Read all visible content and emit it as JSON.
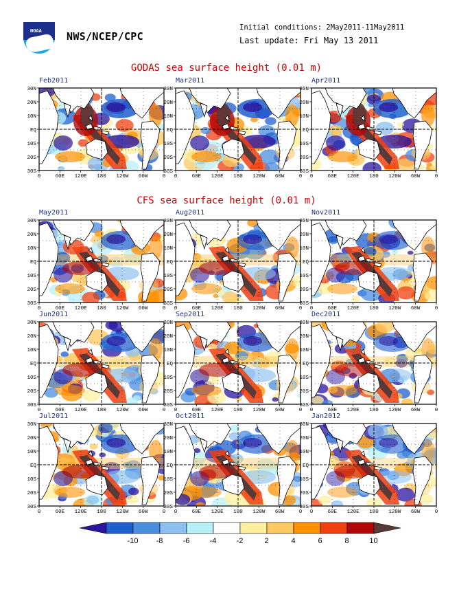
{
  "header": {
    "org": "NWS/NCEP/CPC",
    "logo_text": "NOAA",
    "initial_conditions": "Initial conditions: 2May2011-11May2011",
    "last_update": "Last update: Fri May 13 2011"
  },
  "sections": {
    "godas_title": "GODAS sea surface height (0.01 m)",
    "cfs_title": "CFS sea surface height (0.01 m)"
  },
  "axes": {
    "y_ticks": [
      "30N",
      "20N",
      "10N",
      "EQ",
      "10S",
      "20S",
      "30S"
    ],
    "x_ticks": [
      "0",
      "60E",
      "120E",
      "180",
      "120W",
      "60W",
      "0"
    ]
  },
  "panels": [
    {
      "label": "Feb2011",
      "group": "GODAS",
      "intensity": 1.0
    },
    {
      "label": "Mar2011",
      "group": "GODAS",
      "intensity": 1.0
    },
    {
      "label": "Apr2011",
      "group": "GODAS",
      "intensity": 0.95
    },
    {
      "label": "May2011",
      "group": "CFS",
      "intensity": 0.85
    },
    {
      "label": "Aug2011",
      "group": "CFS",
      "intensity": 0.8
    },
    {
      "label": "Nov2011",
      "group": "CFS",
      "intensity": 0.75
    },
    {
      "label": "Jun2011",
      "group": "CFS",
      "intensity": 0.85
    },
    {
      "label": "Sep2011",
      "group": "CFS",
      "intensity": 0.8
    },
    {
      "label": "Dec2011",
      "group": "CFS",
      "intensity": 0.7
    },
    {
      "label": "Jul2011",
      "group": "CFS",
      "intensity": 0.85
    },
    {
      "label": "Oct2011",
      "group": "CFS",
      "intensity": 0.78
    },
    {
      "label": "Jan2012",
      "group": "CFS",
      "intensity": 0.68
    }
  ],
  "colorbar": {
    "labels": [
      "-10",
      "-8",
      "-6",
      "-4",
      "-2",
      "2",
      "4",
      "6",
      "8",
      "10"
    ],
    "colors": [
      "#2a14a0",
      "#1e5fd0",
      "#4a8ee0",
      "#8cc0f0",
      "#b8f0f8",
      "#ffffff",
      "#fff0a0",
      "#ffc860",
      "#ff9000",
      "#f04010",
      "#b00808",
      "#5a3a38"
    ]
  }
}
